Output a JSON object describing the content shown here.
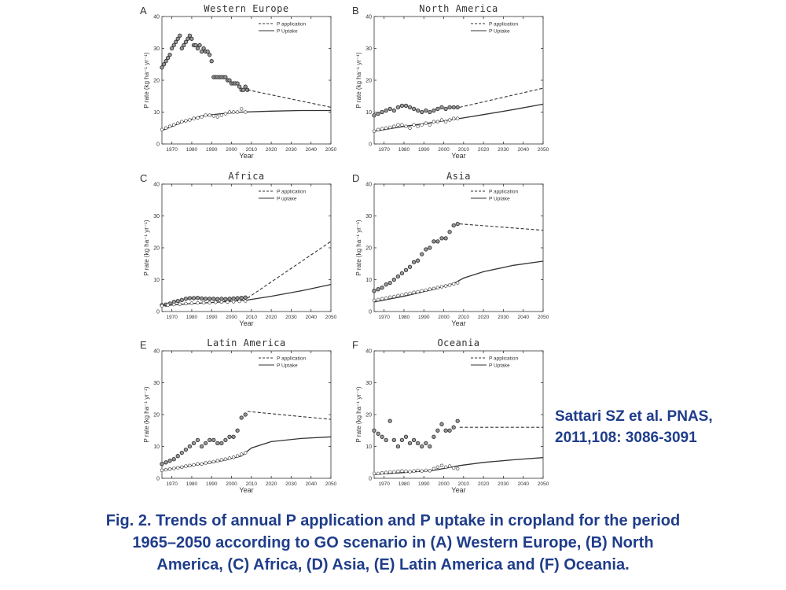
{
  "chart_data": [
    {
      "type": "line",
      "panel_letter": "A",
      "title": "Western Europe",
      "xlabel": "Year",
      "ylabel": "P rate (kg ha⁻¹ yr⁻¹)",
      "xlim": [
        1965,
        2050
      ],
      "ylim": [
        0,
        40
      ],
      "xticks": [
        1970,
        1980,
        1990,
        2000,
        2010,
        2020,
        2030,
        2040,
        2050
      ],
      "yticks": [
        0,
        10,
        20,
        30,
        40
      ],
      "legend": [
        "P application",
        "P Uptake"
      ],
      "legend_position": "top-right",
      "series": [
        {
          "name": "P application",
          "style": "filled-circles",
          "x": [
            1965,
            1966,
            1967,
            1968,
            1969,
            1970,
            1971,
            1972,
            1973,
            1974,
            1975,
            1976,
            1977,
            1978,
            1979,
            1980,
            1981,
            1982,
            1983,
            1984,
            1985,
            1986,
            1987,
            1988,
            1989,
            1990,
            1991,
            1992,
            1993,
            1994,
            1995,
            1996,
            1997,
            1998,
            1999,
            2000,
            2001,
            2002,
            2003,
            2004,
            2005,
            2006,
            2007,
            2008
          ],
          "y": [
            24,
            25,
            26,
            27,
            28,
            30,
            31,
            32,
            33,
            34,
            30,
            31,
            32,
            33,
            34,
            33,
            31,
            31,
            30,
            31,
            29,
            30,
            29,
            29,
            28,
            26,
            21,
            21,
            21,
            21,
            21,
            21,
            21,
            20,
            20,
            19,
            19,
            19,
            19,
            18,
            17,
            17,
            18,
            17
          ]
        },
        {
          "name": "P application",
          "style": "dashed",
          "x": [
            2008,
            2050
          ],
          "y": [
            17,
            11.5
          ]
        },
        {
          "name": "P Uptake",
          "style": "solid",
          "x": [
            1965,
            1975,
            1985,
            1995,
            2005,
            2020,
            2035,
            2050
          ],
          "y": [
            4.2,
            6.8,
            8.8,
            9.5,
            10,
            10.3,
            10.5,
            10.5
          ]
        },
        {
          "name": "P Uptake",
          "style": "open-circles",
          "x": [
            1965,
            1967,
            1969,
            1971,
            1973,
            1975,
            1977,
            1979,
            1981,
            1983,
            1985,
            1987,
            1989,
            1991,
            1993,
            1995,
            1997,
            1999,
            2001,
            2003,
            2005,
            2007
          ],
          "y": [
            4.5,
            5,
            5.5,
            6,
            6.5,
            7,
            7.3,
            7.5,
            8,
            8.2,
            8.5,
            9,
            9,
            8.8,
            8.5,
            9,
            9.5,
            10,
            10,
            10,
            11,
            10
          ]
        }
      ]
    },
    {
      "type": "line",
      "panel_letter": "B",
      "title": "North America",
      "xlabel": "Year",
      "ylabel": "P rate (kg ha⁻¹ yr⁻¹)",
      "xlim": [
        1965,
        2050
      ],
      "ylim": [
        0,
        40
      ],
      "xticks": [
        1970,
        1980,
        1990,
        2000,
        2010,
        2020,
        2030,
        2040,
        2050
      ],
      "yticks": [
        0,
        10,
        20,
        30,
        40
      ],
      "legend": [
        "P application",
        "P Uptake"
      ],
      "legend_position": "top-right",
      "series": [
        {
          "name": "P application",
          "style": "filled-circles",
          "x": [
            1965,
            1967,
            1969,
            1971,
            1973,
            1975,
            1977,
            1979,
            1981,
            1983,
            1985,
            1987,
            1989,
            1991,
            1993,
            1995,
            1997,
            1999,
            2001,
            2003,
            2005,
            2007
          ],
          "y": [
            9,
            9.5,
            10,
            10.5,
            11,
            10.5,
            11.5,
            12,
            12,
            11.5,
            11,
            10.5,
            10,
            10.5,
            10,
            10.5,
            11,
            11.5,
            11,
            11.5,
            11.5,
            11.5
          ]
        },
        {
          "name": "P application",
          "style": "dashed",
          "x": [
            2008,
            2050
          ],
          "y": [
            11.5,
            17.5
          ]
        },
        {
          "name": "P Uptake",
          "style": "solid",
          "x": [
            1965,
            1980,
            1995,
            2008,
            2020,
            2035,
            2050
          ],
          "y": [
            4,
            5.5,
            6.8,
            8,
            9.2,
            10.8,
            12.5
          ]
        },
        {
          "name": "P Uptake",
          "style": "open-circles",
          "x": [
            1965,
            1967,
            1969,
            1971,
            1973,
            1975,
            1977,
            1979,
            1981,
            1983,
            1985,
            1987,
            1989,
            1991,
            1993,
            1995,
            1997,
            1999,
            2001,
            2003,
            2005,
            2007
          ],
          "y": [
            4,
            4.5,
            4.8,
            5,
            5.2,
            5.5,
            6,
            6,
            5.5,
            5,
            6,
            5.5,
            6,
            6.5,
            6,
            7,
            7,
            7.5,
            7,
            7.5,
            8,
            8
          ]
        }
      ]
    },
    {
      "type": "line",
      "panel_letter": "C",
      "title": "Africa",
      "xlabel": "Year",
      "ylabel": "P rate (kg ha⁻¹ yr⁻¹)",
      "xlim": [
        1965,
        2050
      ],
      "ylim": [
        0,
        40
      ],
      "xticks": [
        1970,
        1980,
        1990,
        2000,
        2010,
        2020,
        2030,
        2040,
        2050
      ],
      "yticks": [
        0,
        10,
        20,
        30,
        40
      ],
      "legend": [
        "P application",
        "P uptake"
      ],
      "legend_position": "top-right",
      "series": [
        {
          "name": "P application",
          "style": "filled-circles",
          "x": [
            1965,
            1967,
            1969,
            1971,
            1973,
            1975,
            1977,
            1979,
            1981,
            1983,
            1985,
            1987,
            1989,
            1991,
            1993,
            1995,
            1997,
            1999,
            2001,
            2003,
            2005,
            2007
          ],
          "y": [
            2,
            2.2,
            2.5,
            3,
            3.3,
            3.6,
            4,
            4.2,
            4.2,
            4.3,
            4.1,
            4,
            4,
            4,
            3.9,
            4,
            3.9,
            4,
            4.1,
            4.2,
            4.3,
            4.4
          ]
        },
        {
          "name": "P application",
          "style": "dashed",
          "x": [
            2008,
            2050
          ],
          "y": [
            4.2,
            22
          ]
        },
        {
          "name": "P uptake",
          "style": "solid",
          "x": [
            1965,
            1980,
            1995,
            2008,
            2020,
            2035,
            2050
          ],
          "y": [
            1.8,
            2.5,
            3,
            3.6,
            4.8,
            6.5,
            8.5
          ]
        },
        {
          "name": "P uptake",
          "style": "open-circles",
          "x": [
            1965,
            1968,
            1971,
            1974,
            1977,
            1980,
            1983,
            1986,
            1989,
            1992,
            1995,
            1998,
            2001,
            2004,
            2007
          ],
          "y": [
            1.8,
            2,
            2.2,
            2.3,
            2.5,
            2.6,
            2.7,
            2.8,
            2.8,
            2.9,
            3,
            3,
            3.1,
            3.2,
            3.3
          ]
        }
      ]
    },
    {
      "type": "line",
      "panel_letter": "D",
      "title": "Asia",
      "xlabel": "Year",
      "ylabel": "P rate (kg ha⁻¹ yr⁻¹)",
      "xlim": [
        1965,
        2050
      ],
      "ylim": [
        0,
        40
      ],
      "xticks": [
        1970,
        1980,
        1990,
        2000,
        2010,
        2020,
        2030,
        2040,
        2050
      ],
      "yticks": [
        0,
        10,
        20,
        30,
        40
      ],
      "legend": [
        "P application",
        "P Uptake"
      ],
      "legend_position": "top-right",
      "series": [
        {
          "name": "P application",
          "style": "filled-circles",
          "x": [
            1965,
            1967,
            1969,
            1971,
            1973,
            1975,
            1977,
            1979,
            1981,
            1983,
            1985,
            1987,
            1989,
            1991,
            1993,
            1995,
            1997,
            1999,
            2001,
            2003,
            2005,
            2007
          ],
          "y": [
            6.5,
            7,
            7.5,
            8.5,
            9,
            10,
            11,
            12,
            13,
            14,
            15.5,
            16,
            18,
            19.5,
            20,
            22,
            22,
            23,
            23,
            25,
            27,
            27.5
          ]
        },
        {
          "name": "P application",
          "style": "dashed",
          "x": [
            2008,
            2050
          ],
          "y": [
            27.5,
            25.5
          ]
        },
        {
          "name": "P Uptake",
          "style": "solid",
          "x": [
            1965,
            1980,
            1995,
            2005,
            2010,
            2020,
            2035,
            2050
          ],
          "y": [
            3,
            4.8,
            7,
            8.8,
            10.5,
            12.5,
            14.5,
            15.8
          ]
        },
        {
          "name": "P Uptake",
          "style": "open-circles",
          "x": [
            1965,
            1967,
            1969,
            1971,
            1973,
            1975,
            1977,
            1979,
            1981,
            1983,
            1985,
            1987,
            1989,
            1991,
            1993,
            1995,
            1997,
            1999,
            2001,
            2003,
            2005,
            2007
          ],
          "y": [
            3.5,
            3.7,
            4,
            4.2,
            4.5,
            4.7,
            5,
            5.2,
            5.5,
            5.7,
            6,
            6.2,
            6.5,
            6.7,
            7,
            7.2,
            7.5,
            7.8,
            8,
            8.3,
            8.7,
            9
          ]
        }
      ]
    },
    {
      "type": "line",
      "panel_letter": "E",
      "title": "Latin America",
      "xlabel": "Year",
      "ylabel": "P rate (kg ha⁻¹ yr⁻¹)",
      "xlim": [
        1965,
        2050
      ],
      "ylim": [
        0,
        40
      ],
      "xticks": [
        1970,
        1980,
        1990,
        2000,
        2010,
        2020,
        2030,
        2040,
        2050
      ],
      "yticks": [
        0,
        10,
        20,
        30,
        40
      ],
      "legend": [
        "P application",
        "P Uptake"
      ],
      "legend_position": "top-right",
      "series": [
        {
          "name": "P application",
          "style": "filled-circles",
          "x": [
            1965,
            1967,
            1969,
            1971,
            1973,
            1975,
            1977,
            1979,
            1981,
            1983,
            1985,
            1987,
            1989,
            1991,
            1993,
            1995,
            1997,
            1999,
            2001,
            2003,
            2005,
            2007
          ],
          "y": [
            4.5,
            5,
            5.5,
            6,
            7,
            8,
            9,
            10,
            11,
            12,
            10,
            11,
            12,
            12,
            11,
            11,
            12,
            13,
            13,
            15,
            19,
            20
          ]
        },
        {
          "name": "P application",
          "style": "dashed",
          "x": [
            2008,
            2050
          ],
          "y": [
            21,
            18.5
          ]
        },
        {
          "name": "P Uptake",
          "style": "solid",
          "x": [
            1965,
            1980,
            1995,
            2005,
            2010,
            2020,
            2035,
            2050
          ],
          "y": [
            2.5,
            4,
            5.5,
            7,
            9.5,
            11.5,
            12.5,
            13
          ]
        },
        {
          "name": "P Uptake",
          "style": "open-circles",
          "x": [
            1965,
            1967,
            1969,
            1971,
            1973,
            1975,
            1977,
            1979,
            1981,
            1983,
            1985,
            1987,
            1989,
            1991,
            1993,
            1995,
            1997,
            1999,
            2001,
            2003,
            2005,
            2007
          ],
          "y": [
            2.5,
            2.7,
            2.9,
            3.1,
            3.3,
            3.5,
            3.8,
            4,
            4.2,
            4.5,
            4.5,
            4.8,
            5,
            5.2,
            5.5,
            5.8,
            6,
            6.3,
            6.6,
            7,
            7.5,
            8
          ]
        }
      ]
    },
    {
      "type": "line",
      "panel_letter": "F",
      "title": "Oceania",
      "xlabel": "Year",
      "ylabel": "P rate (kg ha⁻¹ yr⁻¹)",
      "xlim": [
        1965,
        2050
      ],
      "ylim": [
        0,
        40
      ],
      "xticks": [
        1970,
        1980,
        1990,
        2000,
        2010,
        2020,
        2030,
        2040,
        2050
      ],
      "yticks": [
        0,
        10,
        20,
        30,
        40
      ],
      "legend": [
        "P application",
        "P Uptake"
      ],
      "legend_position": "top-right",
      "series": [
        {
          "name": "P application",
          "style": "filled-circles",
          "x": [
            1965,
            1967,
            1969,
            1971,
            1973,
            1975,
            1977,
            1979,
            1981,
            1983,
            1985,
            1987,
            1989,
            1991,
            1993,
            1995,
            1997,
            1999,
            2001,
            2003,
            2005,
            2007
          ],
          "y": [
            15,
            14,
            13,
            12,
            18,
            12,
            10,
            12,
            13,
            11,
            12,
            11,
            10,
            11,
            10,
            13,
            15,
            17,
            15,
            15,
            16,
            18
          ]
        },
        {
          "name": "P application",
          "style": "dashed",
          "x": [
            2008,
            2050
          ],
          "y": [
            16,
            16
          ]
        },
        {
          "name": "P Uptake",
          "style": "solid",
          "x": [
            1965,
            1980,
            1995,
            2008,
            2020,
            2035,
            2050
          ],
          "y": [
            1.2,
            1.8,
            2.5,
            4,
            5,
            5.8,
            6.5
          ]
        },
        {
          "name": "P Uptake",
          "style": "open-circles",
          "x": [
            1965,
            1967,
            1969,
            1971,
            1973,
            1975,
            1977,
            1979,
            1981,
            1983,
            1985,
            1987,
            1989,
            1991,
            1993,
            1995,
            1997,
            1999,
            2001,
            2003,
            2005,
            2007
          ],
          "y": [
            1.5,
            1.5,
            1.7,
            1.8,
            2,
            2,
            2.2,
            2.3,
            2.2,
            2.1,
            2.3,
            2.5,
            2.3,
            2.5,
            2.4,
            3,
            3.5,
            4,
            3.5,
            3.8,
            3.2,
            3
          ]
        }
      ]
    }
  ],
  "citation": {
    "line1": "Sattari SZ et al. PNAS,",
    "line2": "2011,108: 3086-3091"
  },
  "caption": {
    "line1": "Fig. 2. Trends of annual P application and P uptake in cropland for the period",
    "line2": "1965–2050 according to GO scenario in (A) Western Europe, (B) North",
    "line3": "America, (C) Africa, (D) Asia, (E) Latin America and (F) Oceania."
  },
  "colors": {
    "ink": "#333333",
    "caption": "#1f3d8a"
  }
}
